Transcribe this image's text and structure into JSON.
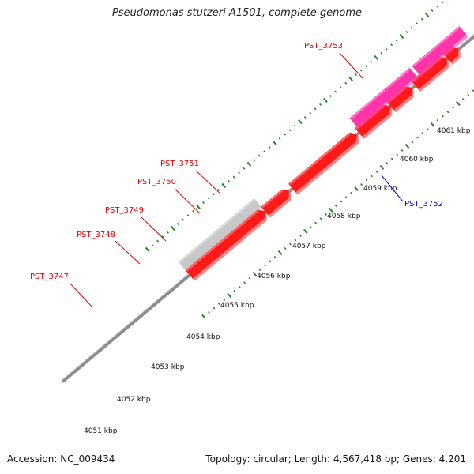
{
  "title": "Pseudomonas stutzeri A1501, complete genome",
  "footer": {
    "accession": "Accession: NC_009434",
    "summary": "Topology: circular; Length: 4,567,418 bp; Genes: 4,201"
  },
  "colors": {
    "background": "#ffffff",
    "backbone": "#8c8c8c",
    "tick": "#1c8a1c",
    "cds_forward": "#ff1a1a",
    "cds_reverse": "#1a1aee",
    "rna_pink": "#ff33aa",
    "rna_purple": "#4a3f8e",
    "hypothetical_gray": "#c8c8c8",
    "label_red": "#ee0000",
    "label_blue": "#0000ee",
    "kbp_label": "#111111"
  },
  "kbp_ticks": [
    "4051 kbp",
    "4052 kbp",
    "4053 kbp",
    "4054 kbp",
    "4055 kbp",
    "4056 kbp",
    "4057 kbp",
    "4058 kbp",
    "4059 kbp",
    "4060 kbp",
    "4061 kbp"
  ],
  "gene_labels": [
    {
      "text": "PST_3747",
      "color": "label_red"
    },
    {
      "text": "PST_3748",
      "color": "label_red"
    },
    {
      "text": "PST_3749",
      "color": "label_red"
    },
    {
      "text": "PST_3750",
      "color": "label_red"
    },
    {
      "text": "PST_3751",
      "color": "label_red"
    },
    {
      "text": "PST_3753",
      "color": "label_red"
    },
    {
      "text": "PST_3752",
      "color": "label_blue"
    }
  ]
}
